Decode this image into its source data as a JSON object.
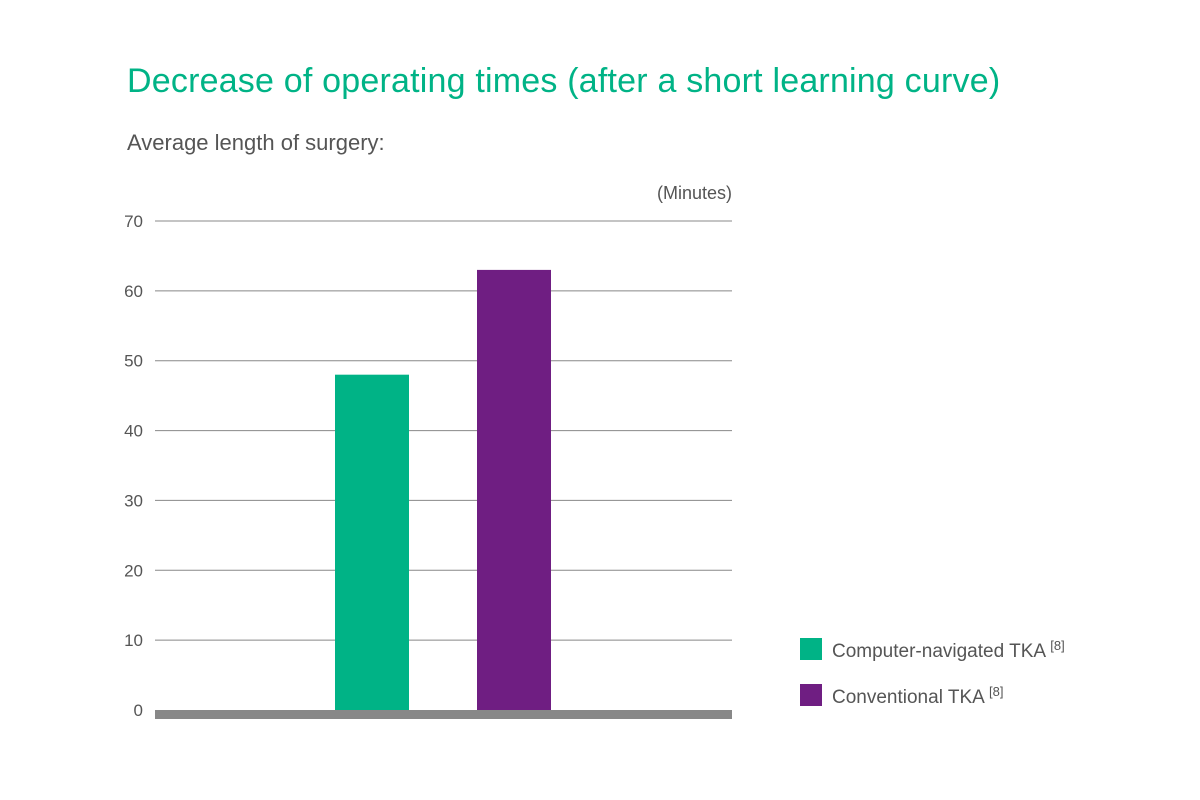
{
  "chart_data": {
    "type": "bar",
    "title": "Decrease of operating times (after a short learning curve)",
    "subtitle": "Average length of surgery:",
    "ylabel": "(Minutes)",
    "xlabel": "",
    "ylim": [
      0,
      70
    ],
    "yticks": [
      0,
      10,
      20,
      30,
      40,
      50,
      60,
      70
    ],
    "grid": true,
    "legend_position": "bottom-right",
    "series": [
      {
        "name": "Computer-navigated TKA",
        "ref": "[8]",
        "value": 48,
        "color": "#00b386"
      },
      {
        "name": "Conventional TKA",
        "ref": "[8]",
        "value": 63,
        "color": "#6f1e82"
      }
    ]
  },
  "colors": {
    "title": "#00b386",
    "text": "#555555",
    "grid": "#888888",
    "baseline": "#888888"
  }
}
